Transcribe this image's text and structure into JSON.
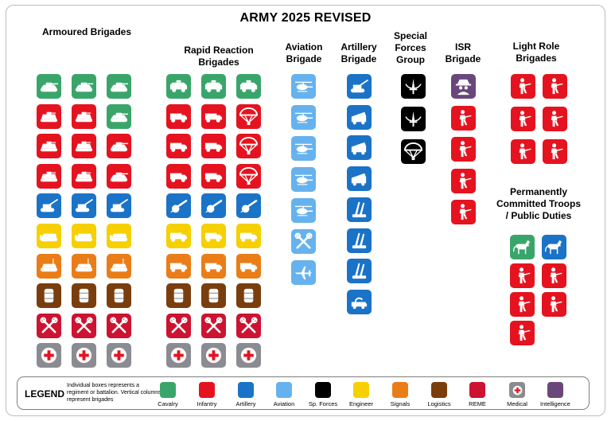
{
  "title": "ARMY 2025 REVISED",
  "colors": {
    "cavalry": "#3aa56a",
    "infantry": "#e5131f",
    "artillery": "#1b73c7",
    "aviation": "#66b2ee",
    "sp_forces": "#000000",
    "engineer": "#f6d000",
    "signals": "#ea7d17",
    "logistics": "#7a3e0e",
    "reme": "#cc1331",
    "medical": "#8a8c92",
    "intelligence": "#6a477a"
  },
  "sections": {
    "armoured": "Armoured Brigades",
    "rapid_reaction_1": "Rapid Reaction",
    "rapid_reaction_2": "Brigades",
    "aviation_1": "Aviation",
    "aviation_2": "Brigade",
    "artillery_1": "Artillery",
    "artillery_2": "Brigade",
    "special_forces_1": "Special",
    "special_forces_2": "Forces",
    "special_forces_3": "Group",
    "isr_1": "ISR",
    "isr_2": "Brigade",
    "light_role_1": "Light Role",
    "light_role_2": "Brigades",
    "permanent_1": "Permanently",
    "permanent_2": "Committed Troops",
    "permanent_3": "/ Public Duties"
  },
  "legend": {
    "title": "LEGEND",
    "description": "Individual boxes represents a regiment or battalion. Vertical columns represent brigades",
    "items": [
      {
        "label": "Cavalry",
        "color_key": "cavalry"
      },
      {
        "label": "Infantry",
        "color_key": "infantry"
      },
      {
        "label": "Artillery",
        "color_key": "artillery"
      },
      {
        "label": "Aviation",
        "color_key": "aviation"
      },
      {
        "label": "Sp. Forces",
        "color_key": "sp_forces"
      },
      {
        "label": "Engineer",
        "color_key": "engineer"
      },
      {
        "label": "Signals",
        "color_key": "signals"
      },
      {
        "label": "Logistics",
        "color_key": "logistics"
      },
      {
        "label": "REME",
        "color_key": "reme"
      },
      {
        "label": "Medical",
        "color_key": "medical"
      },
      {
        "label": "Intelligence",
        "color_key": "intelligence"
      }
    ]
  },
  "units": {
    "armoured": [
      [
        "cavalry:tank-icon",
        "infantry:ifv-icon",
        "infantry:ifv-icon",
        "infantry:ifv-icon",
        "artillery:howitzer-icon",
        "engineer:engineer-vehicle-icon",
        "signals:signals-vehicle-icon",
        "logistics:barrel-icon",
        "reme:wrench-icon",
        "medical:medical-cross-icon"
      ],
      [
        "cavalry:tank-icon",
        "infantry:ifv-icon",
        "infantry:ifv-icon",
        "infantry:ifv-icon",
        "artillery:howitzer-icon",
        "engineer:engineer-vehicle-icon",
        "signals:signals-vehicle-icon",
        "logistics:barrel-icon",
        "reme:wrench-icon",
        "medical:medical-cross-icon"
      ],
      [
        "cavalry:tank-icon",
        "cavalry:tank-icon",
        "infantry:tank-icon",
        "infantry:tank-icon",
        "artillery:howitzer-icon",
        "engineer:engineer-vehicle-icon",
        "signals:signals-vehicle-icon",
        "logistics:barrel-icon",
        "reme:wrench-icon",
        "medical:medical-cross-icon"
      ]
    ],
    "rapid_reaction": [
      [
        "cavalry:armoured-car-icon",
        "infantry:armoured-truck-icon",
        "infantry:armoured-truck-icon",
        "infantry:armoured-truck-icon",
        "artillery:field-gun-icon",
        "engineer:armoured-truck-icon",
        "signals:armoured-truck-icon",
        "logistics:barrel-icon",
        "reme:wrench-icon",
        "medical:medical-cross-icon"
      ],
      [
        "cavalry:armoured-car-icon",
        "infantry:armoured-truck-icon",
        "infantry:armoured-truck-icon",
        "infantry:armoured-truck-icon",
        "artillery:field-gun-icon",
        "engineer:armoured-truck-icon",
        "signals:armoured-truck-icon",
        "logistics:barrel-icon",
        "reme:wrench-icon",
        "medical:medical-cross-icon"
      ],
      [
        "cavalry:armoured-car-icon",
        "infantry:parachute-icon",
        "infantry:parachute-icon",
        "infantry:parachute-icon",
        "artillery:field-gun-icon",
        "engineer:armoured-truck-icon",
        "signals:armoured-truck-icon",
        "logistics:barrel-icon",
        "reme:wrench-icon",
        "medical:medical-cross-icon"
      ]
    ],
    "aviation": [
      [
        "aviation:helicopter-icon",
        "aviation:helicopter-icon",
        "aviation:helicopter-icon",
        "aviation:helicopter-icon",
        "aviation:helicopter-icon",
        "aviation:wrench-icon",
        "aviation:drone-icon"
      ]
    ],
    "artillery": [
      [
        "artillery:howitzer-icon",
        "artillery:rocket-launcher-icon",
        "artillery:rocket-launcher-icon",
        "artillery:rocket-launcher-icon",
        "artillery:missile-icon",
        "artillery:missile-icon",
        "artillery:missile-icon",
        "artillery:radar-vehicle-icon"
      ]
    ],
    "special_forces": [
      [
        "sp_forces:dagger-icon",
        "sp_forces:dagger-icon",
        "sp_forces:parachute-icon"
      ]
    ],
    "isr": [
      [
        "intelligence:spy-icon",
        "infantry:soldier-icon",
        "infantry:soldier-icon",
        "infantry:soldier-icon",
        "infantry:soldier-icon"
      ]
    ],
    "light_role": [
      [
        "infantry:soldier-icon",
        "infantry:soldier-icon",
        "infantry:soldier-icon"
      ],
      [
        "infantry:soldier-icon",
        "infantry:soldier-icon",
        "infantry:soldier-icon"
      ]
    ],
    "permanent": [
      [
        "cavalry:horse-icon",
        "infantry:soldier-icon",
        "infantry:soldier-icon",
        "infantry:soldier-icon"
      ],
      [
        "artillery:horse-icon",
        "infantry:soldier-icon",
        "infantry:soldier-icon"
      ]
    ]
  }
}
